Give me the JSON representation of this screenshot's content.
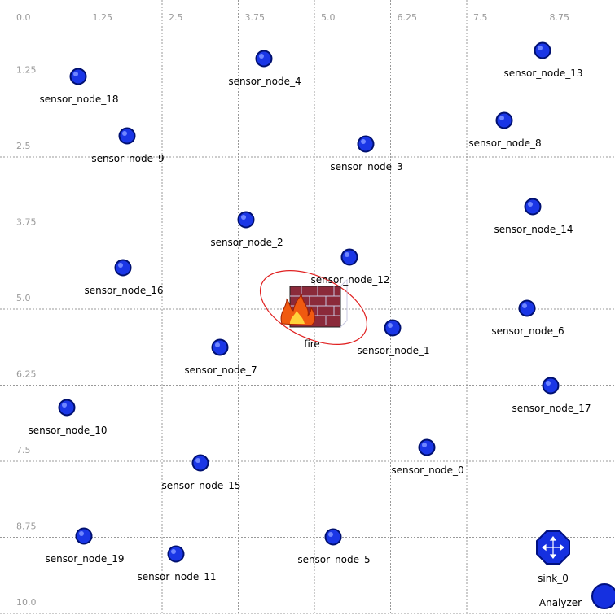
{
  "axes": {
    "top_labels": [
      "0.0",
      "1.25",
      "2.5",
      "3.75",
      "5.0",
      "6.25",
      "7.5",
      "8.75"
    ],
    "left_labels": [
      "1.25",
      "2.5",
      "3.75",
      "5.0",
      "6.25",
      "7.5",
      "8.75",
      "10.0"
    ]
  },
  "nodes": [
    {
      "label": "sensor_node_18"
    },
    {
      "label": "sensor_node_4"
    },
    {
      "label": "sensor_node_13"
    },
    {
      "label": "sensor_node_9"
    },
    {
      "label": "sensor_node_8"
    },
    {
      "label": "sensor_node_3"
    },
    {
      "label": "sensor_node_14"
    },
    {
      "label": "sensor_node_2"
    },
    {
      "label": "sensor_node_12"
    },
    {
      "label": "sensor_node_16"
    },
    {
      "label": "sensor_node_6"
    },
    {
      "label": "sensor_node_1"
    },
    {
      "label": "sensor_node_7"
    },
    {
      "label": "sensor_node_17"
    },
    {
      "label": "sensor_node_10"
    },
    {
      "label": "sensor_node_0"
    },
    {
      "label": "sensor_node_15"
    },
    {
      "label": "sensor_node_19"
    },
    {
      "label": "sensor_node_5"
    },
    {
      "label": "sensor_node_11"
    }
  ],
  "fire": {
    "label": "fire"
  },
  "sink": {
    "label": "sink_0"
  },
  "analyzer": {
    "label": "Analyzer"
  }
}
